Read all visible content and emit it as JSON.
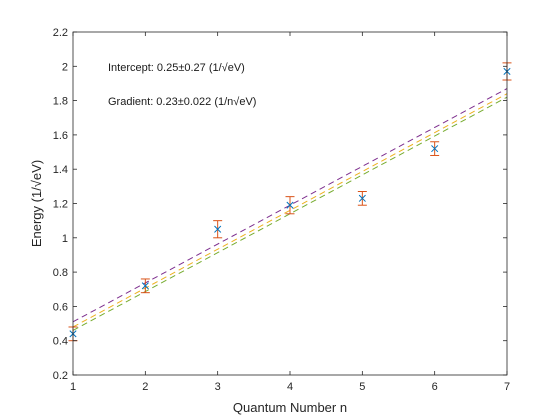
{
  "chart_data": {
    "type": "scatter",
    "title": "",
    "xlabel": "Quantum Number n",
    "ylabel": "Energy (1/√eV)",
    "xlim": [
      1,
      7
    ],
    "ylim": [
      0.2,
      2.2
    ],
    "xticks": [
      "1",
      "2",
      "3",
      "4",
      "5",
      "6",
      "7"
    ],
    "yticks": [
      "0.2",
      "0.4",
      "0.6",
      "0.8",
      "1",
      "1.2",
      "1.4",
      "1.6",
      "1.8",
      "2",
      "2.2"
    ],
    "grid": false,
    "annotations": [
      "Intercept: 0.25±0.27 (1/√eV)",
      "Gradient: 0.23±0.022 (1/n√eV)"
    ],
    "points": {
      "marker": "x",
      "color": "#0072BD",
      "errorbar_color": "#D95319",
      "x": [
        1,
        2,
        3,
        4,
        5,
        6,
        7
      ],
      "y": [
        0.44,
        0.72,
        1.05,
        1.19,
        1.23,
        1.52,
        1.97
      ],
      "error": [
        0.04,
        0.04,
        0.05,
        0.05,
        0.04,
        0.04,
        0.05
      ]
    },
    "lines": [
      {
        "style": "dashed",
        "color": "#7E2F8E",
        "x": [
          1,
          7
        ],
        "y": [
          0.51,
          1.87
        ]
      },
      {
        "style": "dashed",
        "color": "#EDB120",
        "x": [
          1,
          7
        ],
        "y": [
          0.48,
          1.84
        ]
      },
      {
        "style": "dashed",
        "color": "#77AC30",
        "x": [
          1,
          7
        ],
        "y": [
          0.46,
          1.82
        ]
      }
    ]
  }
}
